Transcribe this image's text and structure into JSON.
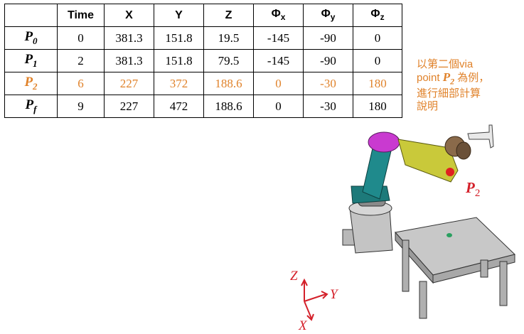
{
  "table": {
    "headers": [
      "",
      "Time",
      "X",
      "Y",
      "Z",
      "Φx",
      "Φy",
      "Φz"
    ],
    "rows": [
      {
        "label": "P",
        "sub": "0",
        "time": "0",
        "x": "381.3",
        "y": "151.8",
        "z": "19.5",
        "phx": "-145",
        "phy": "-90",
        "phz": "0",
        "highlight": false
      },
      {
        "label": "P",
        "sub": "1",
        "time": "2",
        "x": "381.3",
        "y": "151.8",
        "z": "79.5",
        "phx": "-145",
        "phy": "-90",
        "phz": "0",
        "highlight": false
      },
      {
        "label": "P",
        "sub": "2",
        "time": "6",
        "x": "227",
        "y": "372",
        "z": "188.6",
        "phx": "0",
        "phy": "-30",
        "phz": "180",
        "highlight": true
      },
      {
        "label": "P",
        "sub": "f",
        "time": "9",
        "x": "227",
        "y": "472",
        "z": "188.6",
        "phx": "0",
        "phy": "-30",
        "phz": "180",
        "highlight": false
      }
    ]
  },
  "note": {
    "line1": "以第二個via",
    "line2a": "point ",
    "point": "P",
    "point_sub": "2",
    "line2b": " 為例，",
    "line3": "進行細部計算",
    "line4": "說明"
  },
  "scene": {
    "p2_label": "P",
    "p2_sub": "2",
    "axis_z": "Z",
    "axis_y": "Y",
    "axis_x": "X"
  },
  "colors": {
    "highlight": "#e0822a",
    "accent_red": "#d4202a"
  }
}
